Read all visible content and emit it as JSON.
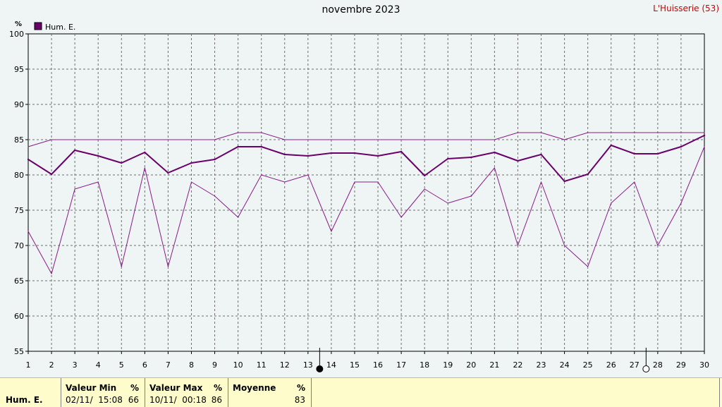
{
  "title": "novembre 2023",
  "station": "L'Huisserie (53)",
  "chart_data": {
    "type": "line",
    "title": "novembre 2023",
    "ylabel": "%",
    "ylim": [
      55,
      100
    ],
    "yticks": [
      55,
      60,
      65,
      70,
      75,
      80,
      85,
      90,
      95,
      100
    ],
    "x": [
      1,
      2,
      3,
      4,
      5,
      6,
      7,
      8,
      9,
      10,
      11,
      12,
      13,
      14,
      15,
      16,
      17,
      18,
      19,
      20,
      21,
      22,
      23,
      24,
      25,
      26,
      27,
      28,
      29,
      30
    ],
    "grid": true,
    "legend_position": "top-left",
    "legend": [
      "Hum. E."
    ],
    "series": [
      {
        "name": "Hum. E.",
        "role": "mean",
        "color": "#6a006a",
        "values": [
          82.2,
          80.1,
          83.5,
          82.7,
          81.7,
          83.2,
          80.3,
          81.7,
          82.2,
          84.0,
          84.0,
          82.9,
          82.7,
          83.1,
          83.1,
          82.7,
          83.3,
          79.9,
          82.3,
          82.5,
          83.2,
          82.0,
          82.9,
          79.1,
          80.1,
          84.2,
          83.0,
          83.0,
          84.0,
          85.6
        ]
      },
      {
        "role": "max",
        "color": "#8a1a8a",
        "values": [
          84,
          85,
          85,
          85,
          85,
          85,
          85,
          85,
          85,
          86,
          86,
          85,
          85,
          85,
          85,
          85,
          85,
          85,
          85,
          85,
          85,
          86,
          86,
          85,
          86,
          86,
          86,
          86,
          86,
          86
        ]
      },
      {
        "role": "min",
        "color": "#8a1a8a",
        "values": [
          72,
          66,
          78,
          79,
          67,
          81,
          67,
          79,
          77,
          74,
          80,
          79,
          80,
          72,
          79,
          79,
          74,
          78,
          76,
          77,
          81,
          70,
          79,
          70,
          67,
          76,
          79,
          70,
          76,
          84
        ]
      }
    ],
    "moon_markers": [
      {
        "day": 13.5,
        "phase": "new-moon"
      },
      {
        "day": 27.5,
        "phase": "full-moon"
      }
    ]
  },
  "footer": {
    "series_name": "Hum. E.",
    "min_header": "Valeur Min",
    "min_unit": "%",
    "min_time": "02/11/  15:08",
    "min_value": "66",
    "max_header": "Valeur Max",
    "max_unit": "%",
    "max_time": "10/11/  00:18",
    "max_value": "86",
    "mean_header": "Moyenne",
    "mean_unit": "%",
    "mean_value": "83"
  },
  "colors": {
    "background": "#eef5f4",
    "series": "#6a006a",
    "grid": "#6e6e6e",
    "station": "#cc0000",
    "footer": "#fffccc"
  }
}
